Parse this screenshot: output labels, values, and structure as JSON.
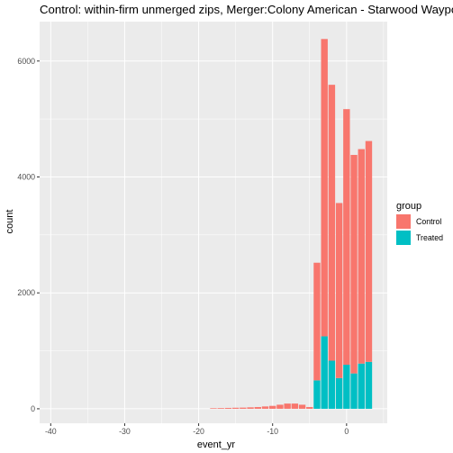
{
  "chart_data": {
    "type": "bar",
    "stacked": true,
    "title": "Control: within-firm unmerged zips, Merger:Colony American - Starwood Waypoint",
    "xlabel": "event_yr",
    "ylabel": "count",
    "xlim": [
      -41.5,
      5.5
    ],
    "ylim": [
      -250,
      6680
    ],
    "xticks": [
      -40,
      -30,
      -20,
      -10,
      0
    ],
    "yticks": [
      0,
      2000,
      4000,
      6000
    ],
    "grid": true,
    "legend": {
      "title": "group",
      "position": "right"
    },
    "colors": {
      "Control": "#F8766D",
      "Treated": "#00BFC4",
      "panel": "#EBEBEB",
      "grid": "#FFFFFF"
    },
    "x": [
      -18,
      -17,
      -16,
      -15,
      -14,
      -13,
      -12,
      -11,
      -10,
      -9,
      -8,
      -7,
      -6,
      -5,
      -4,
      -3,
      -2,
      -1,
      0,
      1,
      2,
      3
    ],
    "series": [
      {
        "name": "Control",
        "values": [
          10,
          12,
          15,
          18,
          20,
          25,
          30,
          40,
          50,
          70,
          90,
          90,
          70,
          30,
          2030,
          5130,
          4760,
          3020,
          4410,
          3770,
          3700,
          3810
        ]
      },
      {
        "name": "Treated",
        "values": [
          0,
          0,
          0,
          0,
          0,
          0,
          0,
          0,
          0,
          0,
          0,
          0,
          0,
          0,
          490,
          1250,
          830,
          530,
          760,
          610,
          780,
          810
        ]
      }
    ]
  }
}
